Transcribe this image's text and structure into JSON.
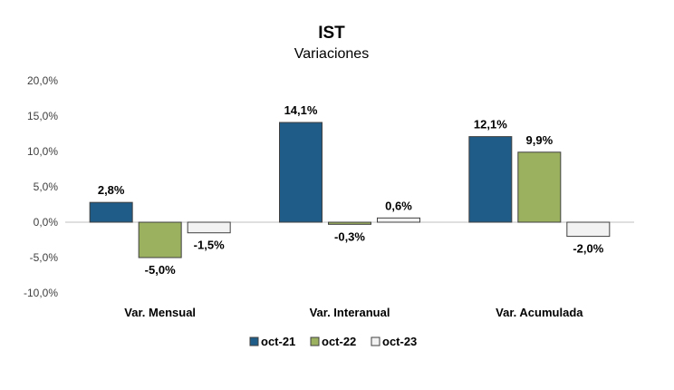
{
  "chart_data": {
    "type": "bar",
    "title": "IST",
    "subtitle": "Variaciones",
    "xlabel": "",
    "ylabel": "",
    "categories": [
      "Var. Mensual",
      "Var. Interanual",
      "Var. Acumulada"
    ],
    "series": [
      {
        "name": "oct-21",
        "color": "#1F5C87",
        "values": [
          2.8,
          14.1,
          12.1
        ],
        "labels": [
          "2,8%",
          "14,1%",
          "12,1%"
        ]
      },
      {
        "name": "oct-22",
        "color": "#9BB15F",
        "values": [
          -5.0,
          -0.3,
          9.9
        ],
        "labels": [
          "-5,0%",
          "-0,3%",
          "9,9%"
        ]
      },
      {
        "name": "oct-23",
        "color": "#F2F2F2",
        "values": [
          -1.5,
          0.6,
          -2.0
        ],
        "labels": [
          "-1,5%",
          "0,6%",
          "-2,0%"
        ]
      }
    ],
    "ylim": [
      -10,
      20
    ],
    "y_ticks": [
      20,
      15,
      10,
      5,
      0,
      -5,
      -10
    ],
    "y_tick_labels": [
      "20,0%",
      "15,0%",
      "10,0%",
      "5,0%",
      "0,0%",
      "-5,0%",
      "-10,0%"
    ],
    "grid": false,
    "legend_position": "bottom",
    "bar_border_color": "#404040",
    "axis_color": "#BFBFBF"
  }
}
